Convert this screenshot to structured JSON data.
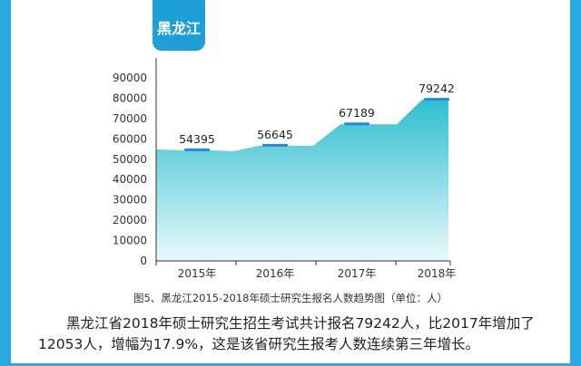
{
  "badge": {
    "label": "黑龙江"
  },
  "caption": "图5、黑龙江2015-2018年硕士研究生报名人数趋势图（单位：人）",
  "paragraph": "黑龙江省2018年硕士研究生招生考试共计报名79242人，比2017年增加了12053人，增幅为17.9%，这是该省研究生报考人数连续第三年增长。",
  "colors": {
    "accent": "#29abe2",
    "area_top": "#2fbfcf",
    "area_bottom": "#e8f9fb",
    "marker": "#1e88e5"
  },
  "chart_data": {
    "type": "area",
    "title": "",
    "xlabel": "",
    "ylabel": "",
    "categories": [
      "2015年",
      "2016年",
      "2017年",
      "2018年"
    ],
    "values": [
      54395,
      56645,
      67189,
      79242
    ],
    "data_labels": [
      "54395",
      "56645",
      "67189",
      "79242"
    ],
    "yticks": [
      0,
      10000,
      20000,
      30000,
      40000,
      50000,
      60000,
      70000,
      80000,
      90000
    ],
    "ylim": [
      0,
      90000
    ],
    "grid": false,
    "legend": "none"
  }
}
